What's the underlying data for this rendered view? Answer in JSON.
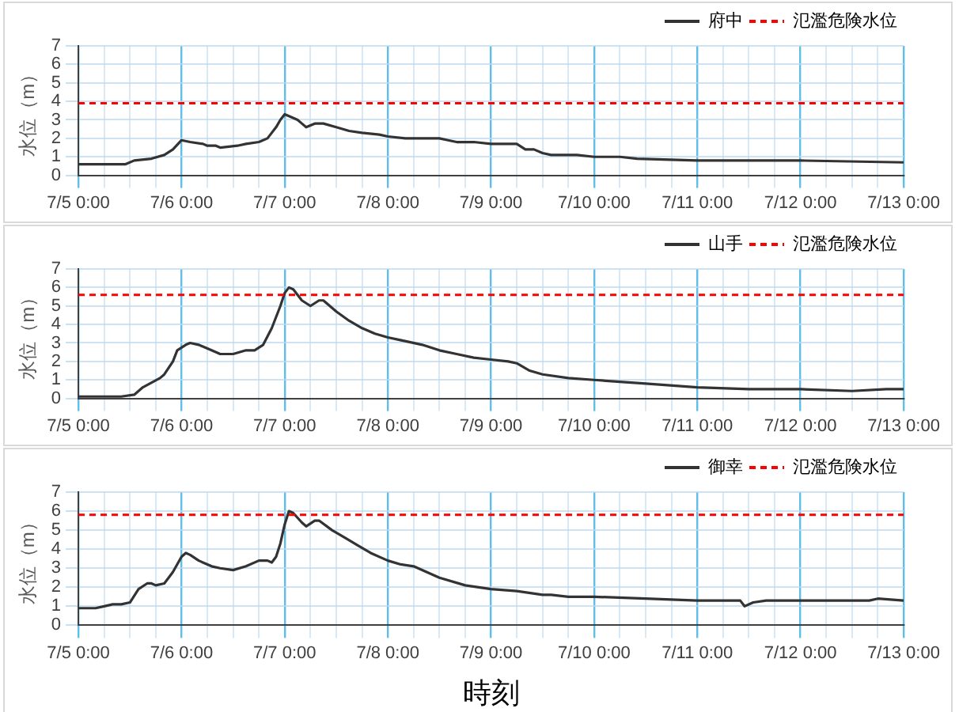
{
  "chart_data": [
    {
      "type": "line",
      "ylabel": "水位（m）",
      "xlim": [
        "--07-05T00:00",
        "--07-13T00:00"
      ],
      "ylim": [
        0,
        7
      ],
      "yticks": [
        0,
        1,
        2,
        3,
        4,
        5,
        6,
        7
      ],
      "xticks": [
        {
          "value": "--07-05T00:00",
          "label": "7/5 0:00"
        },
        {
          "value": "--07-05T06:00",
          "label": null
        },
        {
          "value": "--07-05T12:00",
          "label": null
        },
        {
          "value": "--07-05T18:00",
          "label": null
        },
        {
          "value": "--07-06T00:00",
          "label": "7/6 0:00"
        },
        {
          "value": "--07-06T06:00",
          "label": null
        },
        {
          "value": "--07-06T12:00",
          "label": null
        },
        {
          "value": "--07-06T18:00",
          "label": null
        },
        {
          "value": "--07-07T00:00",
          "label": "7/7 0:00"
        },
        {
          "value": "--07-07T06:00",
          "label": null
        },
        {
          "value": "--07-07T12:00",
          "label": null
        },
        {
          "value": "--07-07T18:00",
          "label": null
        },
        {
          "value": "--07-08T00:00",
          "label": "7/8 0:00"
        },
        {
          "value": "--07-08T06:00",
          "label": null
        },
        {
          "value": "--07-08T12:00",
          "label": null
        },
        {
          "value": "--07-08T18:00",
          "label": null
        },
        {
          "value": "--07-09T00:00",
          "label": "7/9 0:00"
        },
        {
          "value": "--07-09T06:00",
          "label": null
        },
        {
          "value": "--07-09T12:00",
          "label": null
        },
        {
          "value": "--07-09T18:00",
          "label": null
        },
        {
          "value": "--07-10T00:00",
          "label": "7/10 0:00"
        },
        {
          "value": "--07-10T06:00",
          "label": null
        },
        {
          "value": "--07-10T12:00",
          "label": null
        },
        {
          "value": "--07-10T18:00",
          "label": null
        },
        {
          "value": "--07-11T00:00",
          "label": "7/11 0:00"
        },
        {
          "value": "--07-11T06:00",
          "label": null
        },
        {
          "value": "--07-11T12:00",
          "label": null
        },
        {
          "value": "--07-11T18:00",
          "label": null
        },
        {
          "value": "--07-12T00:00",
          "label": "7/12 0:00"
        },
        {
          "value": "--07-12T06:00",
          "label": null
        },
        {
          "value": "--07-12T12:00",
          "label": null
        },
        {
          "value": "--07-12T18:00",
          "label": null
        },
        {
          "value": "--07-13T00:00",
          "label": "7/13 0:00"
        }
      ],
      "grid": true,
      "legend": "top right",
      "ref_lines": [
        {
          "axis": "y",
          "value": 3.9,
          "label": "氾濫危険水位",
          "color": "#ff0000",
          "line_style": "dashed"
        }
      ],
      "series": [
        {
          "name": "府中",
          "color": "#333333",
          "x": [
            "--07-05T00:00",
            "--07-05T11:00",
            "--07-05T13:00",
            "--07-05T17:00",
            "--07-05T20:00",
            "--07-05T22:00",
            "--07-06T00:00",
            "--07-06T02:00",
            "--07-06T05:00",
            "--07-06T06:00",
            "--07-06T08:00",
            "--07-06T09:00",
            "--07-06T13:00",
            "--07-06T15:00",
            "--07-06T18:00",
            "--07-06T20:00",
            "--07-06T22:00",
            "--07-06T23:00",
            "--07-07T00:00",
            "--07-07T01:00",
            "--07-07T03:00",
            "--07-07T04:00",
            "--07-07T05:00",
            "--07-07T07:00",
            "--07-07T09:00",
            "--07-07T12:00",
            "--07-07T15:00",
            "--07-07T18:00",
            "--07-07T22:00",
            "--07-08T00:00",
            "--07-08T04:00",
            "--07-08T12:00",
            "--07-08T14:00",
            "--07-08T16:00",
            "--07-08T20:00",
            "--07-09T00:00",
            "--07-09T06:00",
            "--07-09T08:00",
            "--07-09T10:00",
            "--07-09T12:00",
            "--07-09T14:00",
            "--07-09T20:00",
            "--07-10T00:00",
            "--07-10T06:00",
            "--07-10T10:00",
            "--07-11T00:00",
            "--07-12T00:00",
            "--07-13T00:00"
          ],
          "values": [
            0.6,
            0.6,
            0.8,
            0.9,
            1.1,
            1.4,
            1.9,
            1.8,
            1.7,
            1.6,
            1.6,
            1.5,
            1.6,
            1.7,
            1.8,
            2.0,
            2.6,
            3.0,
            3.3,
            3.2,
            3.0,
            2.8,
            2.6,
            2.8,
            2.8,
            2.6,
            2.4,
            2.3,
            2.2,
            2.1,
            2.0,
            2.0,
            1.9,
            1.8,
            1.8,
            1.7,
            1.7,
            1.4,
            1.4,
            1.2,
            1.1,
            1.1,
            1.0,
            1.0,
            0.9,
            0.8,
            0.8,
            0.7
          ]
        }
      ]
    },
    {
      "type": "line",
      "ylabel": "水位（m）",
      "xlim": [
        "--07-05T00:00",
        "--07-13T00:00"
      ],
      "ylim": [
        0,
        7
      ],
      "yticks": [
        0,
        1,
        2,
        3,
        4,
        5,
        6,
        7
      ],
      "xticks": [
        {
          "value": "--07-05T00:00",
          "label": "7/5 0:00"
        },
        {
          "value": "--07-05T06:00",
          "label": null
        },
        {
          "value": "--07-05T12:00",
          "label": null
        },
        {
          "value": "--07-05T18:00",
          "label": null
        },
        {
          "value": "--07-06T00:00",
          "label": "7/6 0:00"
        },
        {
          "value": "--07-06T06:00",
          "label": null
        },
        {
          "value": "--07-06T12:00",
          "label": null
        },
        {
          "value": "--07-06T18:00",
          "label": null
        },
        {
          "value": "--07-07T00:00",
          "label": "7/7 0:00"
        },
        {
          "value": "--07-07T06:00",
          "label": null
        },
        {
          "value": "--07-07T12:00",
          "label": null
        },
        {
          "value": "--07-07T18:00",
          "label": null
        },
        {
          "value": "--07-08T00:00",
          "label": "7/8 0:00"
        },
        {
          "value": "--07-08T06:00",
          "label": null
        },
        {
          "value": "--07-08T12:00",
          "label": null
        },
        {
          "value": "--07-08T18:00",
          "label": null
        },
        {
          "value": "--07-09T00:00",
          "label": "7/9 0:00"
        },
        {
          "value": "--07-09T06:00",
          "label": null
        },
        {
          "value": "--07-09T12:00",
          "label": null
        },
        {
          "value": "--07-09T18:00",
          "label": null
        },
        {
          "value": "--07-10T00:00",
          "label": "7/10 0:00"
        },
        {
          "value": "--07-10T06:00",
          "label": null
        },
        {
          "value": "--07-10T12:00",
          "label": null
        },
        {
          "value": "--07-10T18:00",
          "label": null
        },
        {
          "value": "--07-11T00:00",
          "label": "7/11 0:00"
        },
        {
          "value": "--07-11T06:00",
          "label": null
        },
        {
          "value": "--07-11T12:00",
          "label": null
        },
        {
          "value": "--07-11T18:00",
          "label": null
        },
        {
          "value": "--07-12T00:00",
          "label": "7/12 0:00"
        },
        {
          "value": "--07-12T06:00",
          "label": null
        },
        {
          "value": "--07-12T12:00",
          "label": null
        },
        {
          "value": "--07-12T18:00",
          "label": null
        },
        {
          "value": "--07-13T00:00",
          "label": "7/13 0:00"
        }
      ],
      "grid": true,
      "legend": "top right",
      "ref_lines": [
        {
          "axis": "y",
          "value": 5.6,
          "label": "氾濫危険水位",
          "color": "#ff0000",
          "line_style": "dashed"
        }
      ],
      "series": [
        {
          "name": "山手",
          "color": "#333333",
          "x": [
            "--07-05T00:00",
            "--07-05T10:00",
            "--07-05T13:00",
            "--07-05T15:00",
            "--07-05T19:00",
            "--07-05T20:00",
            "--07-05T22:00",
            "--07-05T23:00",
            "--07-06T01:00",
            "--07-06T02:00",
            "--07-06T04:00",
            "--07-06T07:00",
            "--07-06T09:00",
            "--07-06T12:00",
            "--07-06T15:00",
            "--07-06T17:00",
            "--07-06T19:00",
            "--07-06T21:00",
            "--07-06T23:00",
            "--07-07T00:00",
            "--07-07T01:00",
            "--07-07T02:00",
            "--07-07T04:00",
            "--07-07T06:00",
            "--07-07T08:00",
            "--07-07T09:00",
            "--07-07T12:00",
            "--07-07T15:00",
            "--07-07T18:00",
            "--07-07T21:00",
            "--07-08T00:00",
            "--07-08T04:00",
            "--07-08T08:00",
            "--07-08T12:00",
            "--07-08T16:00",
            "--07-08T20:00",
            "--07-09T00:00",
            "--07-09T04:00",
            "--07-09T06:00",
            "--07-09T09:00",
            "--07-09T12:00",
            "--07-09T18:00",
            "--07-10T00:00",
            "--07-10T06:00",
            "--07-10T12:00",
            "--07-11T00:00",
            "--07-11T12:00",
            "--07-12T00:00",
            "--07-12T12:00",
            "--07-12T20:00",
            "--07-13T00:00"
          ],
          "values": [
            0.1,
            0.1,
            0.2,
            0.6,
            1.1,
            1.3,
            2.0,
            2.6,
            2.9,
            3.0,
            2.9,
            2.6,
            2.4,
            2.4,
            2.6,
            2.6,
            2.9,
            3.8,
            5.0,
            5.7,
            6.0,
            5.9,
            5.3,
            5.0,
            5.3,
            5.3,
            4.7,
            4.2,
            3.8,
            3.5,
            3.3,
            3.1,
            2.9,
            2.6,
            2.4,
            2.2,
            2.1,
            2.0,
            1.9,
            1.5,
            1.3,
            1.1,
            1.0,
            0.9,
            0.8,
            0.6,
            0.5,
            0.5,
            0.4,
            0.5,
            0.5
          ]
        }
      ]
    },
    {
      "type": "line",
      "ylabel": "水位（m）",
      "xlabel": "時刻",
      "xlim": [
        "--07-05T00:00",
        "--07-13T00:00"
      ],
      "ylim": [
        0,
        7
      ],
      "yticks": [
        0,
        1,
        2,
        3,
        4,
        5,
        6,
        7
      ],
      "xticks": [
        {
          "value": "--07-05T00:00",
          "label": "7/5 0:00"
        },
        {
          "value": "--07-05T06:00",
          "label": null
        },
        {
          "value": "--07-05T12:00",
          "label": null
        },
        {
          "value": "--07-05T18:00",
          "label": null
        },
        {
          "value": "--07-06T00:00",
          "label": "7/6 0:00"
        },
        {
          "value": "--07-06T06:00",
          "label": null
        },
        {
          "value": "--07-06T12:00",
          "label": null
        },
        {
          "value": "--07-06T18:00",
          "label": null
        },
        {
          "value": "--07-07T00:00",
          "label": "7/7 0:00"
        },
        {
          "value": "--07-07T06:00",
          "label": null
        },
        {
          "value": "--07-07T12:00",
          "label": null
        },
        {
          "value": "--07-07T18:00",
          "label": null
        },
        {
          "value": "--07-08T00:00",
          "label": "7/8 0:00"
        },
        {
          "value": "--07-08T06:00",
          "label": null
        },
        {
          "value": "--07-08T12:00",
          "label": null
        },
        {
          "value": "--07-08T18:00",
          "label": null
        },
        {
          "value": "--07-09T00:00",
          "label": "7/9 0:00"
        },
        {
          "value": "--07-09T06:00",
          "label": null
        },
        {
          "value": "--07-09T12:00",
          "label": null
        },
        {
          "value": "--07-09T18:00",
          "label": null
        },
        {
          "value": "--07-10T00:00",
          "label": "7/10 0:00"
        },
        {
          "value": "--07-10T06:00",
          "label": null
        },
        {
          "value": "--07-10T12:00",
          "label": null
        },
        {
          "value": "--07-10T18:00",
          "label": null
        },
        {
          "value": "--07-11T00:00",
          "label": "7/11 0:00"
        },
        {
          "value": "--07-11T06:00",
          "label": null
        },
        {
          "value": "--07-11T12:00",
          "label": null
        },
        {
          "value": "--07-11T18:00",
          "label": null
        },
        {
          "value": "--07-12T00:00",
          "label": "7/12 0:00"
        },
        {
          "value": "--07-12T06:00",
          "label": null
        },
        {
          "value": "--07-12T12:00",
          "label": null
        },
        {
          "value": "--07-12T18:00",
          "label": null
        },
        {
          "value": "--07-13T00:00",
          "label": "7/13 0:00"
        }
      ],
      "grid": true,
      "legend": "top right",
      "ref_lines": [
        {
          "axis": "y",
          "value": 5.8,
          "label": "氾濫危険水位",
          "color": "#ff0000",
          "line_style": "dashed"
        }
      ],
      "series": [
        {
          "name": "御幸",
          "color": "#333333",
          "x": [
            "--07-05T00:00",
            "--07-05T04:00",
            "--07-05T06:00",
            "--07-05T08:00",
            "--07-05T10:00",
            "--07-05T12:00",
            "--07-05T14:00",
            "--07-05T16:00",
            "--07-05T17:00",
            "--07-05T18:00",
            "--07-05T20:00",
            "--07-05T22:00",
            "--07-06T00:00",
            "--07-06T01:00",
            "--07-06T02:00",
            "--07-06T04:00",
            "--07-06T07:00",
            "--07-06T09:00",
            "--07-06T12:00",
            "--07-06T15:00",
            "--07-06T18:00",
            "--07-06T20:00",
            "--07-06T21:00",
            "--07-06T22:00",
            "--07-06T23:00",
            "--07-07T00:00",
            "--07-07T01:00",
            "--07-07T02:00",
            "--07-07T04:00",
            "--07-07T05:00",
            "--07-07T07:00",
            "--07-07T08:00",
            "--07-07T11:00",
            "--07-07T14:00",
            "--07-07T17:00",
            "--07-07T20:00",
            "--07-08T00:00",
            "--07-08T03:00",
            "--07-08T06:00",
            "--07-08T12:00",
            "--07-08T18:00",
            "--07-09T00:00",
            "--07-09T06:00",
            "--07-09T12:00",
            "--07-09T14:00",
            "--07-09T18:00",
            "--07-10T00:00",
            "--07-10T12:00",
            "--07-11T00:00",
            "--07-11T06:00",
            "--07-11T10:00",
            "--07-11T11:00",
            "--07-11T13:00",
            "--07-11T16:00",
            "--07-12T00:00",
            "--07-12T06:00",
            "--07-12T12:00",
            "--07-12T16:00",
            "--07-12T18:00",
            "--07-13T00:00"
          ],
          "values": [
            0.9,
            0.9,
            1.0,
            1.1,
            1.1,
            1.2,
            1.9,
            2.2,
            2.2,
            2.1,
            2.2,
            2.8,
            3.6,
            3.8,
            3.7,
            3.4,
            3.1,
            3.0,
            2.9,
            3.1,
            3.4,
            3.4,
            3.3,
            3.6,
            4.3,
            5.3,
            6.0,
            5.9,
            5.4,
            5.2,
            5.5,
            5.5,
            5.0,
            4.6,
            4.2,
            3.8,
            3.4,
            3.2,
            3.1,
            2.5,
            2.1,
            1.9,
            1.8,
            1.6,
            1.6,
            1.5,
            1.5,
            1.4,
            1.3,
            1.3,
            1.3,
            1.0,
            1.2,
            1.3,
            1.3,
            1.3,
            1.3,
            1.3,
            1.4,
            1.3
          ]
        }
      ]
    }
  ]
}
